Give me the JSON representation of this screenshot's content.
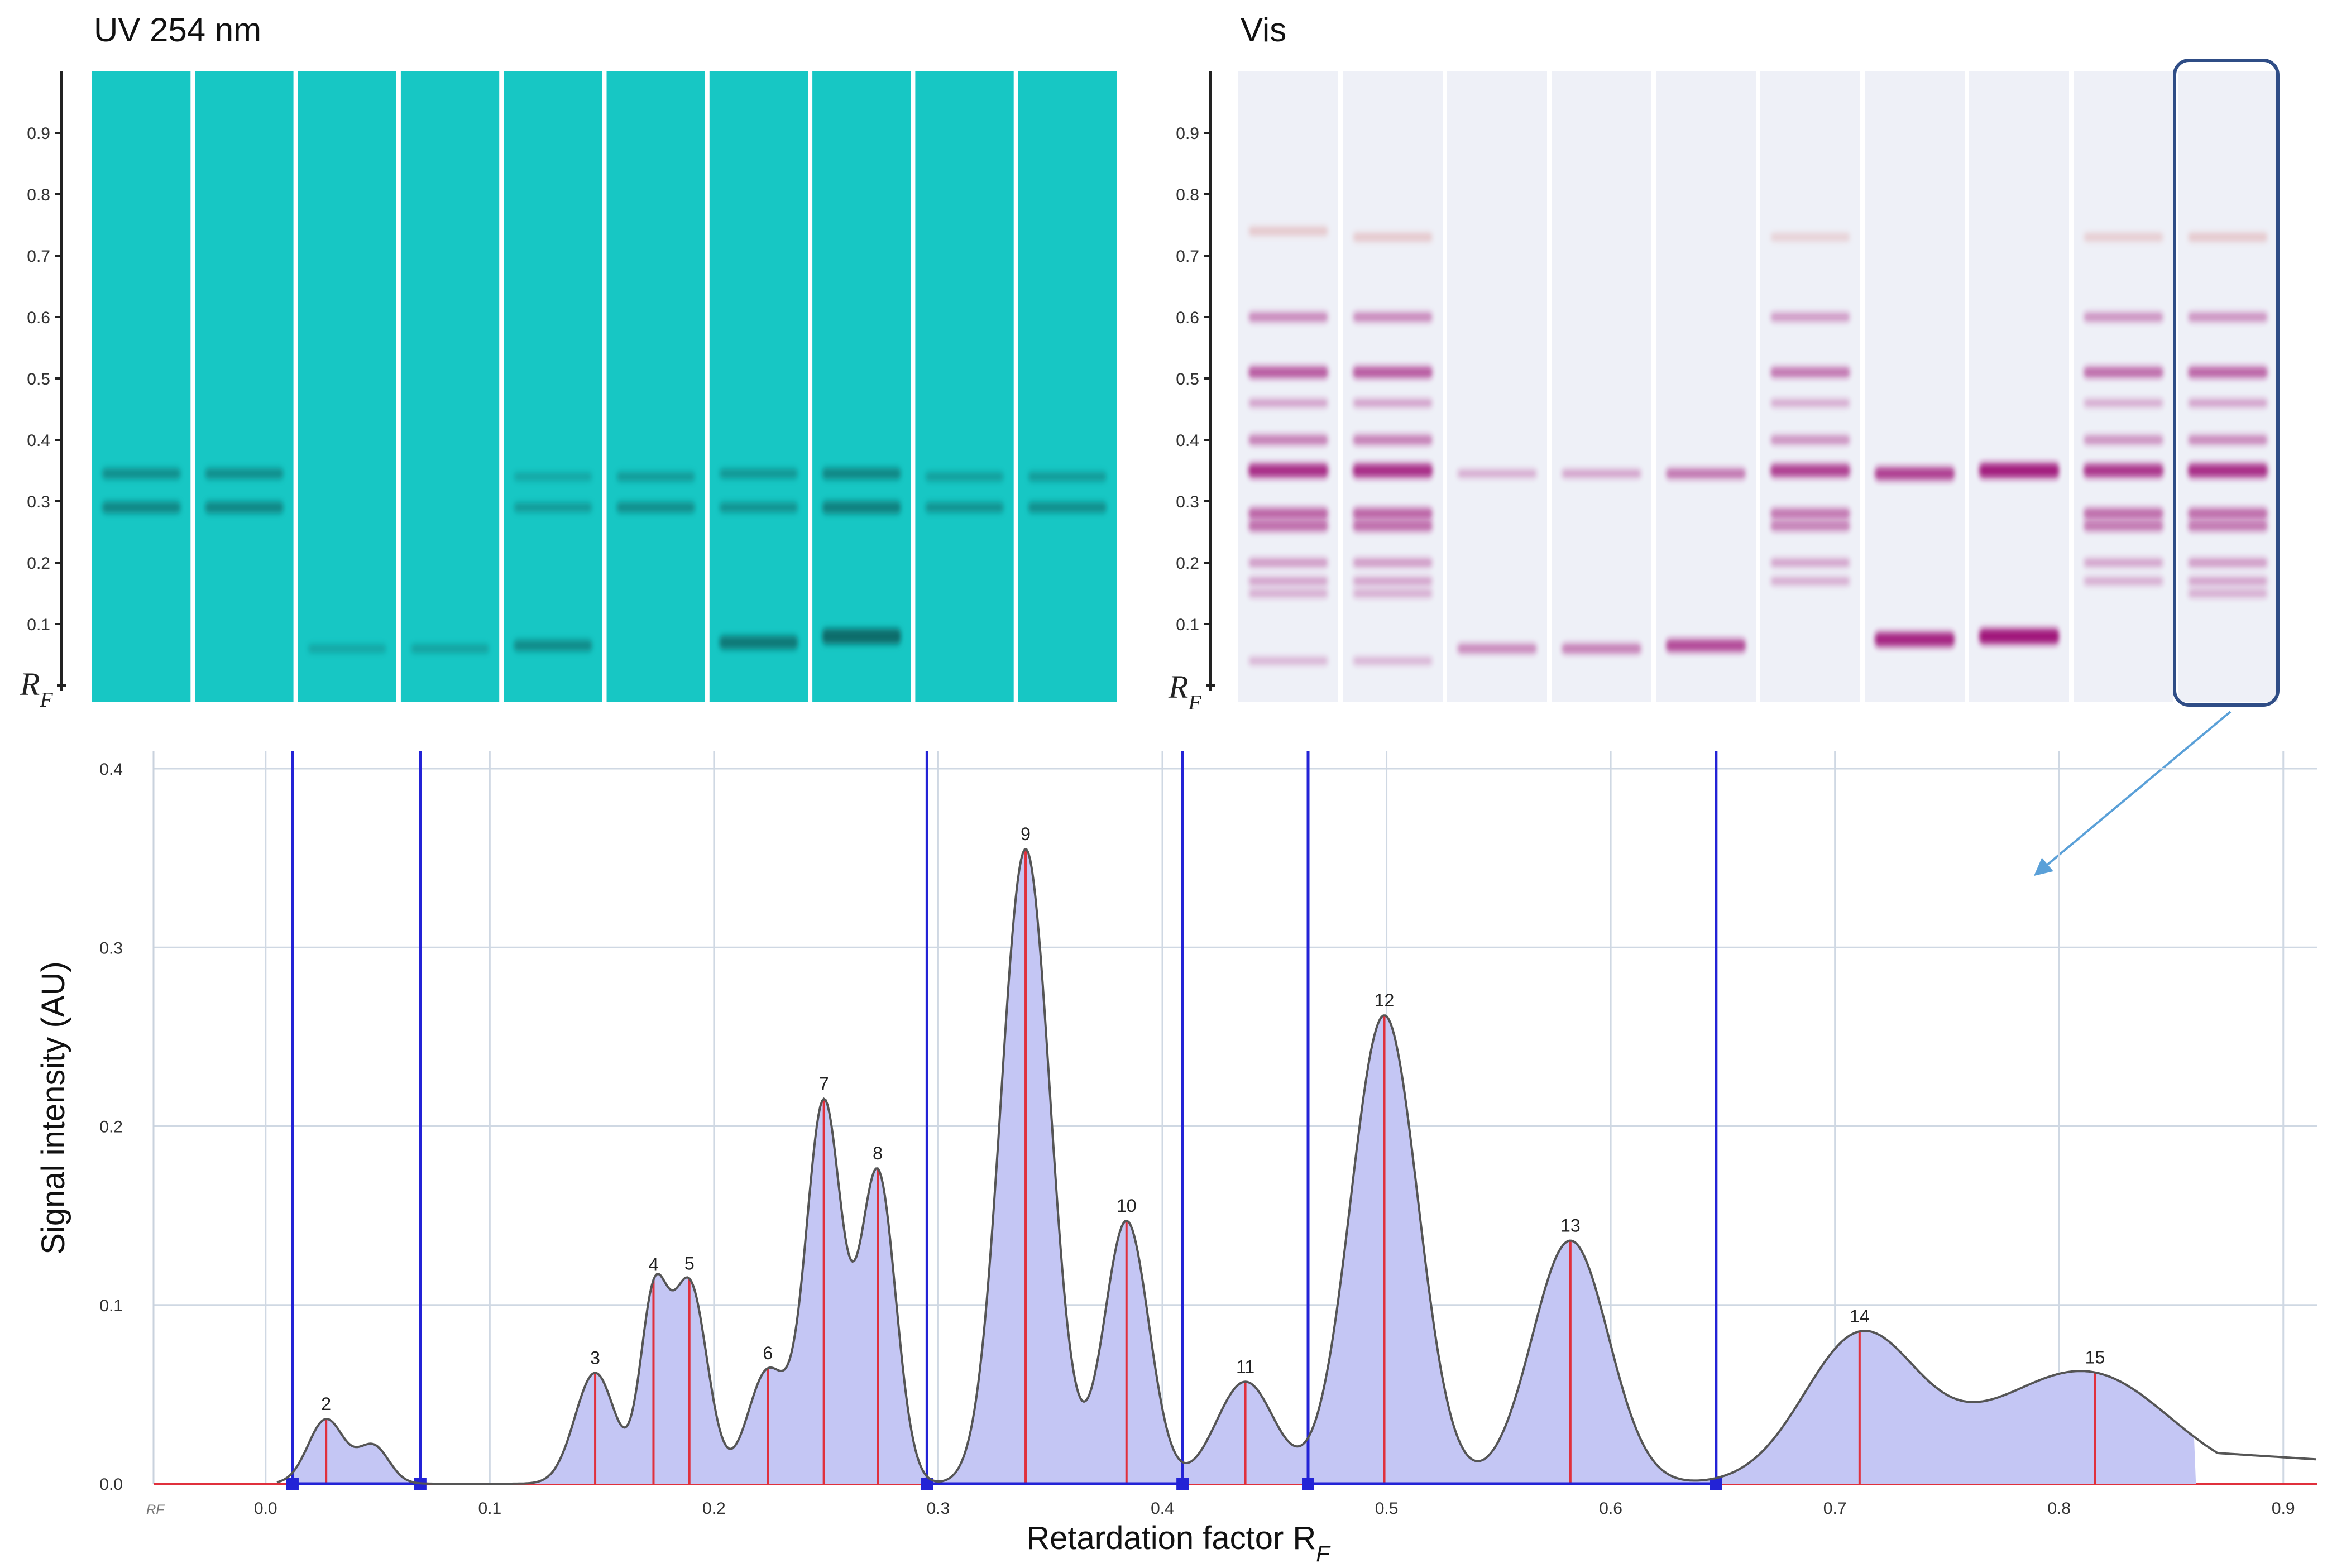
{
  "panels": {
    "uv": {
      "title": "UV 254 nm",
      "rf_symbol": "R",
      "rf_subscript": "F",
      "tick_labels": [
        "0.1",
        "0.2",
        "0.3",
        "0.4",
        "0.5",
        "0.6",
        "0.7",
        "0.8",
        "0.9"
      ],
      "background_color": "#17c7c4",
      "band_color": "#0b6c6a",
      "tracks": [
        {
          "bands": [
            {
              "rf": 0.345,
              "intensity": 0.5
            },
            {
              "rf": 0.29,
              "intensity": 0.6
            }
          ]
        },
        {
          "bands": [
            {
              "rf": 0.345,
              "intensity": 0.5
            },
            {
              "rf": 0.29,
              "intensity": 0.6
            }
          ]
        },
        {
          "bands": [
            {
              "rf": 0.06,
              "intensity": 0.2
            }
          ]
        },
        {
          "bands": [
            {
              "rf": 0.06,
              "intensity": 0.25
            }
          ]
        },
        {
          "bands": [
            {
              "rf": 0.34,
              "intensity": 0.2
            },
            {
              "rf": 0.29,
              "intensity": 0.35
            },
            {
              "rf": 0.065,
              "intensity": 0.55
            }
          ]
        },
        {
          "bands": [
            {
              "rf": 0.34,
              "intensity": 0.35
            },
            {
              "rf": 0.29,
              "intensity": 0.5
            }
          ]
        },
        {
          "bands": [
            {
              "rf": 0.345,
              "intensity": 0.4
            },
            {
              "rf": 0.29,
              "intensity": 0.45
            },
            {
              "rf": 0.07,
              "intensity": 0.8
            }
          ]
        },
        {
          "bands": [
            {
              "rf": 0.345,
              "intensity": 0.6
            },
            {
              "rf": 0.29,
              "intensity": 0.7
            },
            {
              "rf": 0.08,
              "intensity": 1.0
            }
          ]
        },
        {
          "bands": [
            {
              "rf": 0.34,
              "intensity": 0.3
            },
            {
              "rf": 0.29,
              "intensity": 0.45
            }
          ]
        },
        {
          "bands": [
            {
              "rf": 0.34,
              "intensity": 0.35
            },
            {
              "rf": 0.29,
              "intensity": 0.5
            }
          ]
        }
      ]
    },
    "vis": {
      "title": "Vis",
      "rf_symbol": "R",
      "rf_subscript": "F",
      "tick_labels": [
        "0.1",
        "0.2",
        "0.3",
        "0.4",
        "0.5",
        "0.6",
        "0.7",
        "0.8",
        "0.9"
      ],
      "background_color": "#eef0f7",
      "band_color": "#a0157a",
      "highlight_color": "#2f4d86",
      "arrow_color": "#5aa0d8",
      "highlighted_track": 9,
      "tracks": [
        {
          "bands": [
            {
              "rf": 0.74,
              "intensity": 0.25,
              "tint": "#d98a8a"
            },
            {
              "rf": 0.6,
              "intensity": 0.35
            },
            {
              "rf": 0.51,
              "intensity": 0.6
            },
            {
              "rf": 0.46,
              "intensity": 0.2
            },
            {
              "rf": 0.4,
              "intensity": 0.4
            },
            {
              "rf": 0.35,
              "intensity": 0.85
            },
            {
              "rf": 0.28,
              "intensity": 0.55
            },
            {
              "rf": 0.26,
              "intensity": 0.5
            },
            {
              "rf": 0.2,
              "intensity": 0.25
            },
            {
              "rf": 0.17,
              "intensity": 0.2
            },
            {
              "rf": 0.15,
              "intensity": 0.15
            },
            {
              "rf": 0.04,
              "intensity": 0.1
            }
          ]
        },
        {
          "bands": [
            {
              "rf": 0.73,
              "intensity": 0.25,
              "tint": "#d98a8a"
            },
            {
              "rf": 0.6,
              "intensity": 0.35
            },
            {
              "rf": 0.51,
              "intensity": 0.6
            },
            {
              "rf": 0.46,
              "intensity": 0.2
            },
            {
              "rf": 0.4,
              "intensity": 0.4
            },
            {
              "rf": 0.35,
              "intensity": 0.85
            },
            {
              "rf": 0.28,
              "intensity": 0.55
            },
            {
              "rf": 0.26,
              "intensity": 0.5
            },
            {
              "rf": 0.2,
              "intensity": 0.25
            },
            {
              "rf": 0.17,
              "intensity": 0.2
            },
            {
              "rf": 0.15,
              "intensity": 0.15
            },
            {
              "rf": 0.04,
              "intensity": 0.1
            }
          ]
        },
        {
          "bands": [
            {
              "rf": 0.345,
              "intensity": 0.15
            },
            {
              "rf": 0.06,
              "intensity": 0.35
            }
          ]
        },
        {
          "bands": [
            {
              "rf": 0.345,
              "intensity": 0.2
            },
            {
              "rf": 0.06,
              "intensity": 0.4
            }
          ]
        },
        {
          "bands": [
            {
              "rf": 0.345,
              "intensity": 0.45
            },
            {
              "rf": 0.065,
              "intensity": 0.7
            }
          ]
        },
        {
          "bands": [
            {
              "rf": 0.73,
              "intensity": 0.15,
              "tint": "#d98a8a"
            },
            {
              "rf": 0.6,
              "intensity": 0.25
            },
            {
              "rf": 0.51,
              "intensity": 0.45
            },
            {
              "rf": 0.46,
              "intensity": 0.15
            },
            {
              "rf": 0.4,
              "intensity": 0.3
            },
            {
              "rf": 0.35,
              "intensity": 0.75
            },
            {
              "rf": 0.28,
              "intensity": 0.45
            },
            {
              "rf": 0.26,
              "intensity": 0.4
            },
            {
              "rf": 0.2,
              "intensity": 0.2
            },
            {
              "rf": 0.17,
              "intensity": 0.15
            }
          ]
        },
        {
          "bands": [
            {
              "rf": 0.345,
              "intensity": 0.75
            },
            {
              "rf": 0.075,
              "intensity": 0.9
            }
          ]
        },
        {
          "bands": [
            {
              "rf": 0.35,
              "intensity": 0.95
            },
            {
              "rf": 0.08,
              "intensity": 1.0
            }
          ]
        },
        {
          "bands": [
            {
              "rf": 0.73,
              "intensity": 0.2,
              "tint": "#d98a8a"
            },
            {
              "rf": 0.6,
              "intensity": 0.3
            },
            {
              "rf": 0.51,
              "intensity": 0.5
            },
            {
              "rf": 0.46,
              "intensity": 0.15
            },
            {
              "rf": 0.4,
              "intensity": 0.3
            },
            {
              "rf": 0.35,
              "intensity": 0.8
            },
            {
              "rf": 0.28,
              "intensity": 0.5
            },
            {
              "rf": 0.26,
              "intensity": 0.45
            },
            {
              "rf": 0.2,
              "intensity": 0.2
            },
            {
              "rf": 0.17,
              "intensity": 0.15
            }
          ]
        },
        {
          "bands": [
            {
              "rf": 0.73,
              "intensity": 0.25,
              "tint": "#d98a8a"
            },
            {
              "rf": 0.6,
              "intensity": 0.3
            },
            {
              "rf": 0.51,
              "intensity": 0.55
            },
            {
              "rf": 0.46,
              "intensity": 0.2
            },
            {
              "rf": 0.4,
              "intensity": 0.35
            },
            {
              "rf": 0.35,
              "intensity": 0.85
            },
            {
              "rf": 0.28,
              "intensity": 0.5
            },
            {
              "rf": 0.26,
              "intensity": 0.45
            },
            {
              "rf": 0.2,
              "intensity": 0.25
            },
            {
              "rf": 0.17,
              "intensity": 0.2
            },
            {
              "rf": 0.15,
              "intensity": 0.15
            }
          ]
        }
      ]
    }
  },
  "chart_data": {
    "type": "line",
    "title": "",
    "xlabel": "Retardation factor R",
    "xlabel_subscript": "F",
    "ylabel": "Signal intensity (AU)",
    "x_origin_label": "RF",
    "xlim": [
      -0.05,
      0.915
    ],
    "ylim": [
      0,
      0.41
    ],
    "xticks": [
      0.0,
      0.1,
      0.2,
      0.3,
      0.4,
      0.5,
      0.6,
      0.7,
      0.8,
      0.9
    ],
    "xtick_labels": [
      "0.0",
      "0.1",
      "0.2",
      "0.3",
      "0.4",
      "0.5",
      "0.6",
      "0.7",
      "0.8",
      "0.9"
    ],
    "yticks": [
      0.0,
      0.1,
      0.2,
      0.3,
      0.4
    ],
    "ytick_labels": [
      "0.0",
      "0.1",
      "0.2",
      "0.3",
      "0.4"
    ],
    "grid": true,
    "colors": {
      "fill": "#c4c6f4",
      "line": "#555555",
      "peak_marker": "#e0303c",
      "baseline": "#e0303c",
      "integration_bound": "#2323d6",
      "grid": "#cfd8e3"
    },
    "peaks": [
      {
        "label": "2",
        "rf": 0.027,
        "height": 0.036,
        "width": 0.008
      },
      {
        "label": "",
        "rf": 0.048,
        "height": 0.021,
        "width": 0.007
      },
      {
        "label": "3",
        "rf": 0.147,
        "height": 0.062,
        "width": 0.009
      },
      {
        "label": "4",
        "rf": 0.173,
        "height": 0.098,
        "width": 0.006
      },
      {
        "label": "5",
        "rf": 0.189,
        "height": 0.112,
        "width": 0.008
      },
      {
        "label": "6",
        "rf": 0.224,
        "height": 0.063,
        "width": 0.009
      },
      {
        "label": "7",
        "rf": 0.249,
        "height": 0.212,
        "width": 0.008
      },
      {
        "label": "8",
        "rf": 0.273,
        "height": 0.174,
        "width": 0.008
      },
      {
        "label": "9",
        "rf": 0.339,
        "height": 0.355,
        "width": 0.011
      },
      {
        "label": "10",
        "rf": 0.384,
        "height": 0.147,
        "width": 0.01
      },
      {
        "label": "11",
        "rf": 0.437,
        "height": 0.057,
        "width": 0.013
      },
      {
        "label": "12",
        "rf": 0.499,
        "height": 0.262,
        "width": 0.015
      },
      {
        "label": "13",
        "rf": 0.582,
        "height": 0.136,
        "width": 0.017
      },
      {
        "label": "14",
        "rf": 0.711,
        "height": 0.081,
        "width": 0.025
      },
      {
        "label": "15",
        "rf": 0.816,
        "height": 0.058,
        "width": 0.035
      },
      {
        "label": "",
        "rf": 0.765,
        "height": 0.018,
        "width": 0.03
      }
    ],
    "integration_bounds": [
      0.012,
      0.069,
      0.295,
      0.409,
      0.465,
      0.647
    ],
    "fill_range": [
      0.012,
      0.861
    ]
  }
}
